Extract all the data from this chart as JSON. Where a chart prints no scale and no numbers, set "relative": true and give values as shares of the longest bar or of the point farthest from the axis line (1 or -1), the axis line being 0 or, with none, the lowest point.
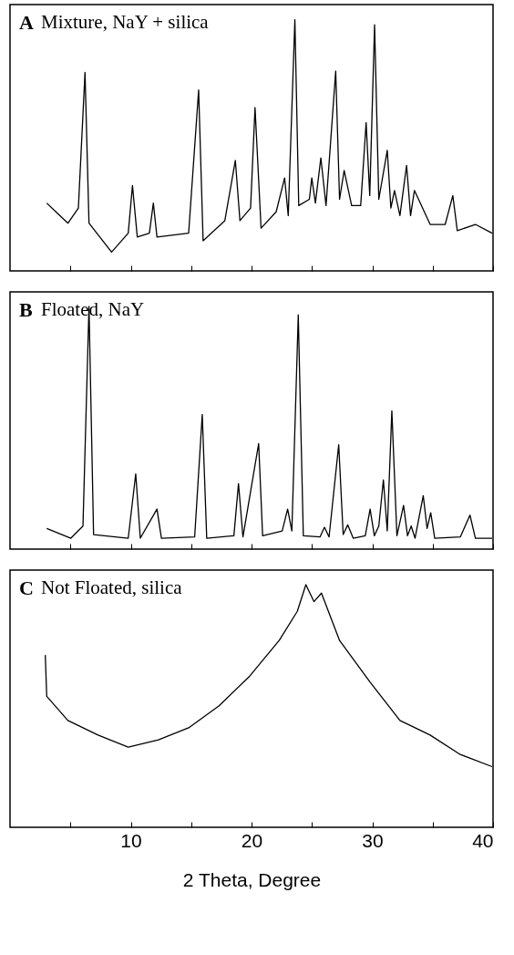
{
  "chart_data": [
    {
      "type": "line",
      "title": "A",
      "subtitle": "Mixture, NaY + silica",
      "relative": true,
      "xlim": [
        0,
        40
      ],
      "xticks": [
        {
          "value": 5,
          "label": null
        },
        10,
        {
          "value": 15,
          "label": null
        },
        20,
        {
          "value": 25,
          "label": null
        },
        30,
        {
          "value": 35,
          "label": null
        },
        40
      ],
      "tick_labels": false,
      "grid": false,
      "x": [
        3.04,
        3.8,
        4.8,
        5.66,
        6.21,
        6.54,
        8.41,
        9.79,
        10.14,
        10.54,
        11.54,
        11.87,
        12.17,
        14.79,
        15.62,
        15.99,
        17.79,
        18.66,
        19.04,
        19.92,
        20.29,
        20.79,
        22.04,
        22.74,
        23.04,
        23.59,
        23.91,
        24.79,
        24.99,
        25.29,
        25.74,
        26.17,
        26.97,
        27.29,
        27.67,
        28.29,
        29.04,
        29.49,
        29.79,
        30.19,
        30.54,
        31.24,
        31.54,
        31.84,
        32.29,
        32.84,
        33.17,
        33.49,
        34.79,
        36.04,
        36.67,
        37.04,
        38.54,
        39.92
      ],
      "series": [
        {
          "color": "#000000",
          "values": [
            0.27,
            0.235,
            0.19,
            0.25,
            0.79,
            0.19,
            0.075,
            0.15,
            0.34,
            0.135,
            0.15,
            0.27,
            0.135,
            0.15,
            0.72,
            0.12,
            0.2,
            0.44,
            0.2,
            0.25,
            0.65,
            0.17,
            0.235,
            0.37,
            0.22,
            1.0,
            0.26,
            0.285,
            0.37,
            0.27,
            0.45,
            0.26,
            0.795,
            0.285,
            0.4,
            0.26,
            0.26,
            0.59,
            0.3,
            0.98,
            0.285,
            0.48,
            0.25,
            0.32,
            0.22,
            0.42,
            0.22,
            0.32,
            0.185,
            0.185,
            0.3,
            0.16,
            0.185,
            0.15
          ]
        }
      ]
    },
    {
      "type": "line",
      "title": "B",
      "subtitle": "Floated, NaY",
      "relative": true,
      "xlim": [
        0,
        40
      ],
      "xticks": [
        {
          "value": 5,
          "label": null
        },
        10,
        {
          "value": 15,
          "label": null
        },
        20,
        {
          "value": 25,
          "label": null
        },
        30,
        {
          "value": 35,
          "label": null
        },
        40
      ],
      "tick_labels": false,
      "grid": false,
      "x": [
        3.04,
        5.04,
        6.04,
        6.54,
        6.92,
        9.79,
        10.41,
        10.79,
        12.17,
        12.54,
        15.29,
        15.92,
        16.29,
        18.54,
        18.92,
        19.29,
        20.59,
        20.92,
        22.54,
        22.99,
        23.34,
        23.87,
        24.29,
        25.67,
        26.04,
        26.42,
        27.22,
        27.59,
        27.97,
        28.42,
        29.42,
        29.82,
        30.17,
        30.54,
        30.92,
        31.24,
        31.62,
        32.04,
        32.59,
        32.92,
        33.22,
        33.54,
        34.22,
        34.54,
        34.84,
        35.17,
        37.29,
        38.09,
        38.54,
        39.92
      ],
      "series": [
        {
          "color": "#000000",
          "values": [
            0.085,
            0.045,
            0.095,
            1.0,
            0.06,
            0.045,
            0.31,
            0.045,
            0.165,
            0.045,
            0.05,
            0.555,
            0.045,
            0.055,
            0.27,
            0.05,
            0.435,
            0.055,
            0.075,
            0.165,
            0.075,
            0.965,
            0.055,
            0.05,
            0.09,
            0.05,
            0.43,
            0.06,
            0.1,
            0.045,
            0.055,
            0.165,
            0.055,
            0.095,
            0.285,
            0.075,
            0.57,
            0.055,
            0.18,
            0.055,
            0.095,
            0.045,
            0.22,
            0.085,
            0.15,
            0.045,
            0.05,
            0.14,
            0.045,
            0.045
          ]
        }
      ]
    },
    {
      "type": "line",
      "title": "C",
      "subtitle": "Not Floated, silica",
      "xlabel": "2 Theta, Degree",
      "relative": true,
      "xlim": [
        0,
        40
      ],
      "xticks": [
        {
          "value": 5,
          "label": null
        },
        10,
        {
          "value": 15,
          "label": null
        },
        20,
        {
          "value": 25,
          "label": null
        },
        30,
        {
          "value": 35,
          "label": null
        },
        40
      ],
      "tick_labels": "x",
      "grid": false,
      "x": [
        2.92,
        3.04,
        4.79,
        7.29,
        9.79,
        12.29,
        14.79,
        17.29,
        19.79,
        22.29,
        23.79,
        24.5,
        25.17,
        25.79,
        27.29,
        29.79,
        32.29,
        34.79,
        37.29,
        39.92
      ],
      "series": [
        {
          "color": "#000000",
          "values": [
            0.71,
            0.54,
            0.44,
            0.38,
            0.33,
            0.36,
            0.41,
            0.5,
            0.62,
            0.77,
            0.89,
            1.0,
            0.93,
            0.965,
            0.77,
            0.6,
            0.44,
            0.38,
            0.3,
            0.25
          ]
        }
      ]
    }
  ]
}
